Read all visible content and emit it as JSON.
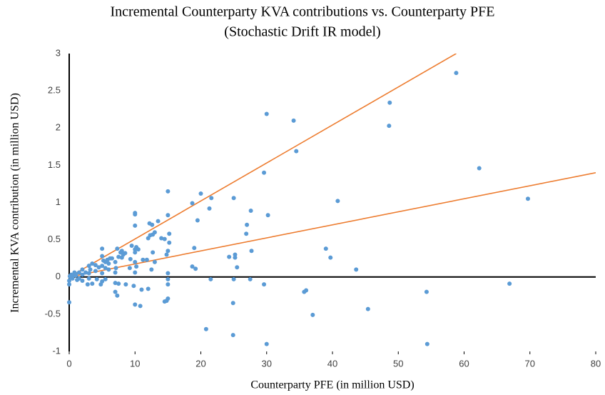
{
  "chart_data": {
    "type": "scatter",
    "title": "Incremental Counterparty KVA contributions vs. Counterparty PFE",
    "subtitle": "(Stochastic Drift IR model)",
    "x_label": "Counterparty PFE (in million USD)",
    "y_label": "Incremental KVA contribution (in million USD)",
    "xlim": [
      0,
      80
    ],
    "ylim": [
      -1,
      3
    ],
    "xticks": [
      0,
      10,
      20,
      30,
      40,
      50,
      60,
      70,
      80
    ],
    "yticks": [
      -1,
      -0.5,
      0,
      0.5,
      1,
      1.5,
      2,
      2.5,
      3
    ],
    "grid": false,
    "color": "#5b9bd5",
    "x": [
      58.8,
      62.3,
      69.7,
      66.9,
      54.3,
      54.4,
      45.4,
      43.6,
      40.8,
      39,
      39.7,
      37,
      36,
      35.7,
      48.7,
      48.6,
      34.1,
      34.5,
      30,
      29.6,
      30.2,
      29.6,
      30,
      27.6,
      27.7,
      27.5,
      27,
      26.9,
      25,
      25.2,
      25.2,
      25.5,
      25,
      24.9,
      24.9,
      24.3,
      21.3,
      21.6,
      21.5,
      20,
      19.5,
      18.7,
      19,
      18.7,
      19.2,
      20.8,
      15,
      15,
      15.2,
      15.2,
      15,
      14.8,
      14.5,
      14,
      15,
      15,
      15,
      15,
      14.8,
      14.5,
      12.2,
      12.6,
      13.5,
      13,
      12.7,
      12.3,
      12,
      12.7,
      13,
      12.5,
      12,
      11,
      10.8,
      10,
      10,
      10,
      10.2,
      10,
      10.5,
      10,
      10,
      10.2,
      10,
      9.8,
      10,
      11.2,
      11.8,
      9.3,
      9.2,
      9.5,
      7.3,
      7.8,
      8,
      8.2,
      7.5,
      8,
      7,
      7.1,
      7,
      7,
      7.5,
      7,
      7.3,
      8.6,
      8.5,
      6.5,
      6.2,
      5,
      5,
      5.2,
      5.5,
      6,
      5,
      5.5,
      6,
      5,
      5.5,
      5,
      4.8,
      5.8,
      4,
      4.5,
      3.5,
      3,
      3.2,
      4,
      3,
      2.5,
      3,
      2.8,
      3.5,
      4.2,
      2,
      2,
      1.5,
      2,
      1.5,
      1,
      1,
      0.5,
      0.5,
      0.2,
      0,
      0,
      0,
      0.3,
      1.2,
      0.8,
      0.1
    ],
    "values": [
      2.74,
      1.46,
      1.05,
      -0.09,
      -0.2,
      -0.9,
      -0.43,
      0.1,
      1.02,
      0.38,
      0.26,
      -0.51,
      -0.18,
      -0.2,
      2.34,
      2.03,
      2.1,
      1.69,
      2.19,
      1.4,
      0.83,
      -0.1,
      -0.9,
      0.89,
      0.35,
      -0.03,
      0.7,
      0.58,
      1.06,
      0.3,
      0.26,
      0.13,
      -0.03,
      -0.35,
      -0.78,
      0.27,
      0.92,
      1.06,
      -0.03,
      1.12,
      0.76,
      0.99,
      0.39,
      0.14,
      0.11,
      -0.7,
      1.15,
      0.83,
      0.58,
      0.46,
      0.35,
      0.3,
      0.51,
      0.52,
      0.05,
      -0.03,
      -0.1,
      -0.29,
      -0.32,
      -0.33,
      0.72,
      0.7,
      0.75,
      0.6,
      0.57,
      0.56,
      0.52,
      0.33,
      0.2,
      0.1,
      -0.16,
      -0.17,
      -0.39,
      0.86,
      0.84,
      0.69,
      0.4,
      0.37,
      0.37,
      0.33,
      0.2,
      0.14,
      0.06,
      -0.12,
      -0.37,
      0.23,
      0.23,
      0.24,
      0.12,
      0.42,
      0.38,
      0.33,
      0.35,
      0.3,
      0.27,
      0.26,
      0.2,
      0.12,
      0.06,
      -0.08,
      -0.09,
      -0.2,
      -0.25,
      -0.1,
      0.32,
      0.25,
      0.25,
      0.38,
      0.28,
      0.22,
      0.2,
      0.18,
      0.15,
      0.12,
      0.1,
      0.05,
      -0.03,
      -0.06,
      -0.1,
      0.23,
      0.16,
      0.13,
      0.18,
      0.15,
      0.1,
      0.08,
      0.05,
      0.06,
      -0.02,
      -0.1,
      -0.09,
      -0.03,
      0.1,
      0.03,
      -0.02,
      -0.05,
      0.06,
      0.04,
      0.02,
      0.01,
      -0.02,
      0,
      -0.05,
      -0.1,
      -0.34,
      0.03,
      -0.04,
      0.06,
      0.01
    ],
    "trendlines": [
      {
        "color": "#ed7d31",
        "x": [
          0,
          58.8
        ],
        "values": [
          0,
          3
        ]
      },
      {
        "color": "#ed7d31",
        "x": [
          0,
          80
        ],
        "values": [
          0,
          1.4
        ]
      }
    ]
  }
}
